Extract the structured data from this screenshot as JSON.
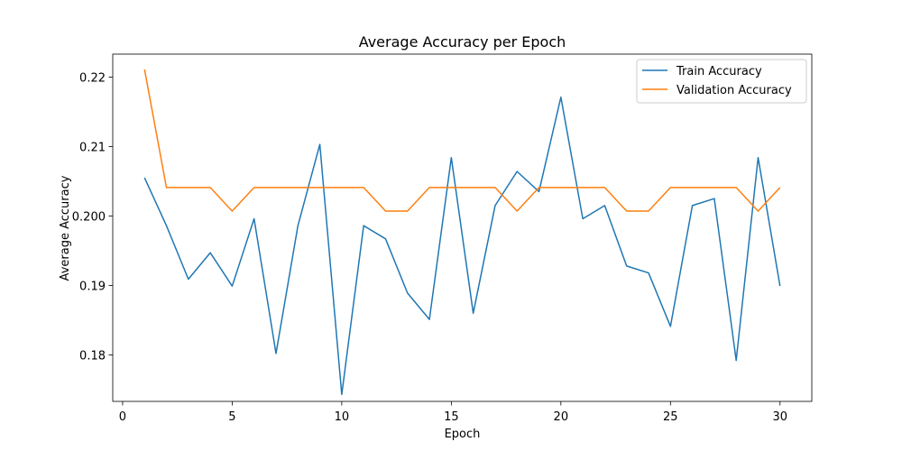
{
  "chart_data": {
    "type": "line",
    "title": "Average Accuracy per Epoch",
    "xlabel": "Epoch",
    "ylabel": "Average Accuracy",
    "xlim": [
      -0.45,
      31.45
    ],
    "ylim": [
      0.1733,
      0.2233
    ],
    "xticks": [
      0,
      5,
      10,
      15,
      20,
      25,
      30
    ],
    "xtick_labels": [
      "0",
      "5",
      "10",
      "15",
      "20",
      "25",
      "30"
    ],
    "yticks": [
      0.18,
      0.19,
      0.2,
      0.21,
      0.22
    ],
    "ytick_labels": [
      "0.18",
      "0.19",
      "0.200",
      "0.21",
      "0.22"
    ],
    "grid": false,
    "legend_position": "top-right",
    "x": [
      1,
      2,
      3,
      4,
      5,
      6,
      7,
      8,
      9,
      10,
      11,
      12,
      13,
      14,
      15,
      16,
      17,
      18,
      19,
      20,
      21,
      22,
      23,
      24,
      25,
      26,
      27,
      28,
      29,
      30
    ],
    "series": [
      {
        "name": "Train Accuracy",
        "color": "#1f77b4",
        "values": [
          0.2055,
          0.1986,
          0.1909,
          0.1947,
          0.1899,
          0.1996,
          0.1802,
          0.1986,
          0.2103,
          0.1743,
          0.1986,
          0.1967,
          0.1889,
          0.1851,
          0.2084,
          0.186,
          0.2015,
          0.2064,
          0.2035,
          0.2171,
          0.1996,
          0.2015,
          0.1928,
          0.1918,
          0.1841,
          0.2015,
          0.2025,
          0.1792,
          0.2084,
          0.1899
        ]
      },
      {
        "name": "Validation Accuracy",
        "color": "#ff7f0e",
        "values": [
          0.2211,
          0.2041,
          0.2041,
          0.2041,
          0.2007,
          0.2041,
          0.2041,
          0.2041,
          0.2041,
          0.2041,
          0.2041,
          0.2007,
          0.2007,
          0.2041,
          0.2041,
          0.2041,
          0.2041,
          0.2007,
          0.2041,
          0.2041,
          0.2041,
          0.2041,
          0.2007,
          0.2007,
          0.2041,
          0.2041,
          0.2041,
          0.2041,
          0.2007,
          0.2041
        ]
      }
    ]
  }
}
